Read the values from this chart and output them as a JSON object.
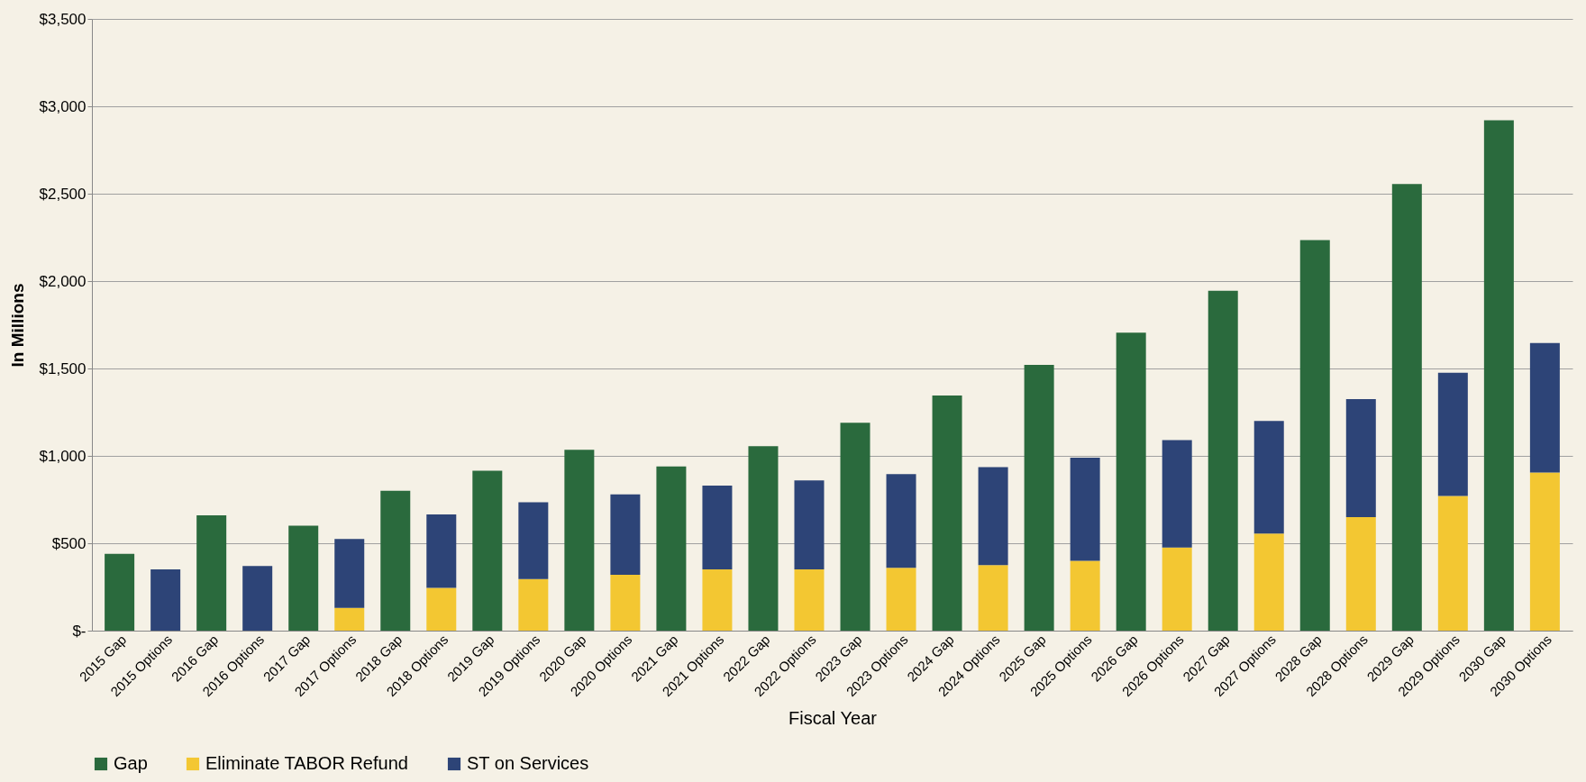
{
  "chart_data": {
    "type": "bar",
    "stacked": true,
    "xlabel": "Fiscal Year",
    "ylabel": "In Millions",
    "categories": [
      "2015 Gap",
      "2015 Options",
      "2016 Gap",
      "2016 Options",
      "2017 Gap",
      "2017 Options",
      "2018 Gap",
      "2018 Options",
      "2019 Gap",
      "2019 Options",
      "2020 Gap",
      "2020 Options",
      "2021 Gap",
      "2021 Options",
      "2022 Gap",
      "2022 Options",
      "2023 Gap",
      "2023 Options",
      "2024 Gap",
      "2024 Options",
      "2025 Gap",
      "2025 Options",
      "2026 Gap",
      "2026 Options",
      "2027 Gap",
      "2027 Options",
      "2028 Gap",
      "2028 Options",
      "2029 Gap",
      "2029 Options",
      "2030 Gap",
      "2030 Options"
    ],
    "series": [
      {
        "name": "Gap",
        "color": "#2a6a3d",
        "values": [
          440,
          null,
          660,
          null,
          600,
          null,
          800,
          null,
          915,
          null,
          1035,
          null,
          940,
          null,
          1055,
          null,
          1190,
          null,
          1345,
          null,
          1520,
          null,
          1705,
          null,
          1945,
          null,
          2235,
          null,
          2555,
          null,
          2920,
          null
        ]
      },
      {
        "name": "Eliminate TABOR Refund",
        "color": "#f3c732",
        "values": [
          null,
          0,
          null,
          0,
          null,
          130,
          null,
          245,
          null,
          295,
          null,
          320,
          null,
          350,
          null,
          350,
          null,
          360,
          null,
          375,
          null,
          400,
          null,
          475,
          null,
          555,
          null,
          650,
          null,
          770,
          null,
          905
        ]
      },
      {
        "name": "ST on Services",
        "color": "#2d4477",
        "values": [
          null,
          350,
          null,
          370,
          null,
          395,
          null,
          420,
          null,
          440,
          null,
          460,
          null,
          480,
          null,
          510,
          null,
          535,
          null,
          560,
          null,
          590,
          null,
          615,
          null,
          645,
          null,
          675,
          null,
          705,
          null,
          740
        ]
      }
    ],
    "ylim": [
      0,
      3500
    ],
    "yticks": [
      {
        "value": 0,
        "label": "$-"
      },
      {
        "value": 500,
        "label": "$500"
      },
      {
        "value": 1000,
        "label": "$1,000"
      },
      {
        "value": 1500,
        "label": "$1,500"
      },
      {
        "value": 2000,
        "label": "$2,000"
      },
      {
        "value": 2500,
        "label": "$2,500"
      },
      {
        "value": 3000,
        "label": "$3,000"
      },
      {
        "value": 3500,
        "label": "$3,500"
      }
    ],
    "grid": "y",
    "legend": "bottom"
  }
}
